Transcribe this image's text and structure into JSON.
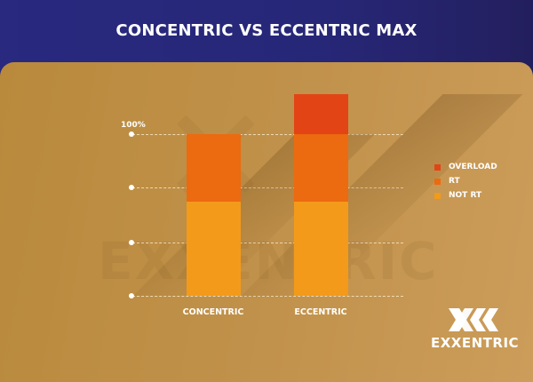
{
  "title": "CONCENTRIC VS ECCENTRIC MAX",
  "colors": {
    "header_bg": "#28297f",
    "panel_bg": "#c0914a",
    "overload": "#e34416",
    "rt": "#ec6a10",
    "not_rt": "#f39a1a"
  },
  "axis": {
    "top_label": "100%"
  },
  "legend": [
    {
      "label": "OVERLOAD",
      "color": "#e34416"
    },
    {
      "label": "RT",
      "color": "#ec6a10"
    },
    {
      "label": "NOT RT",
      "color": "#f39a1a"
    }
  ],
  "logo": {
    "text": "EXXENTRIC"
  },
  "watermark": "EXXENTRIC",
  "chart_data": {
    "type": "bar",
    "stacked": true,
    "title": "CONCENTRIC VS ECCENTRIC MAX",
    "xlabel": "",
    "ylabel": "",
    "categories": [
      "CONCENTRIC",
      "ECCENTRIC"
    ],
    "series": [
      {
        "name": "NOT RT",
        "values": [
          58,
          58
        ]
      },
      {
        "name": "RT",
        "values": [
          42,
          42
        ]
      },
      {
        "name": "OVERLOAD",
        "values": [
          0,
          25
        ]
      }
    ],
    "yticks": [
      0,
      33,
      67,
      100
    ],
    "ytick_labels": [
      "",
      "",
      "",
      "100%"
    ],
    "ylim": [
      0,
      125
    ],
    "grid": true,
    "legend_position": "right"
  }
}
